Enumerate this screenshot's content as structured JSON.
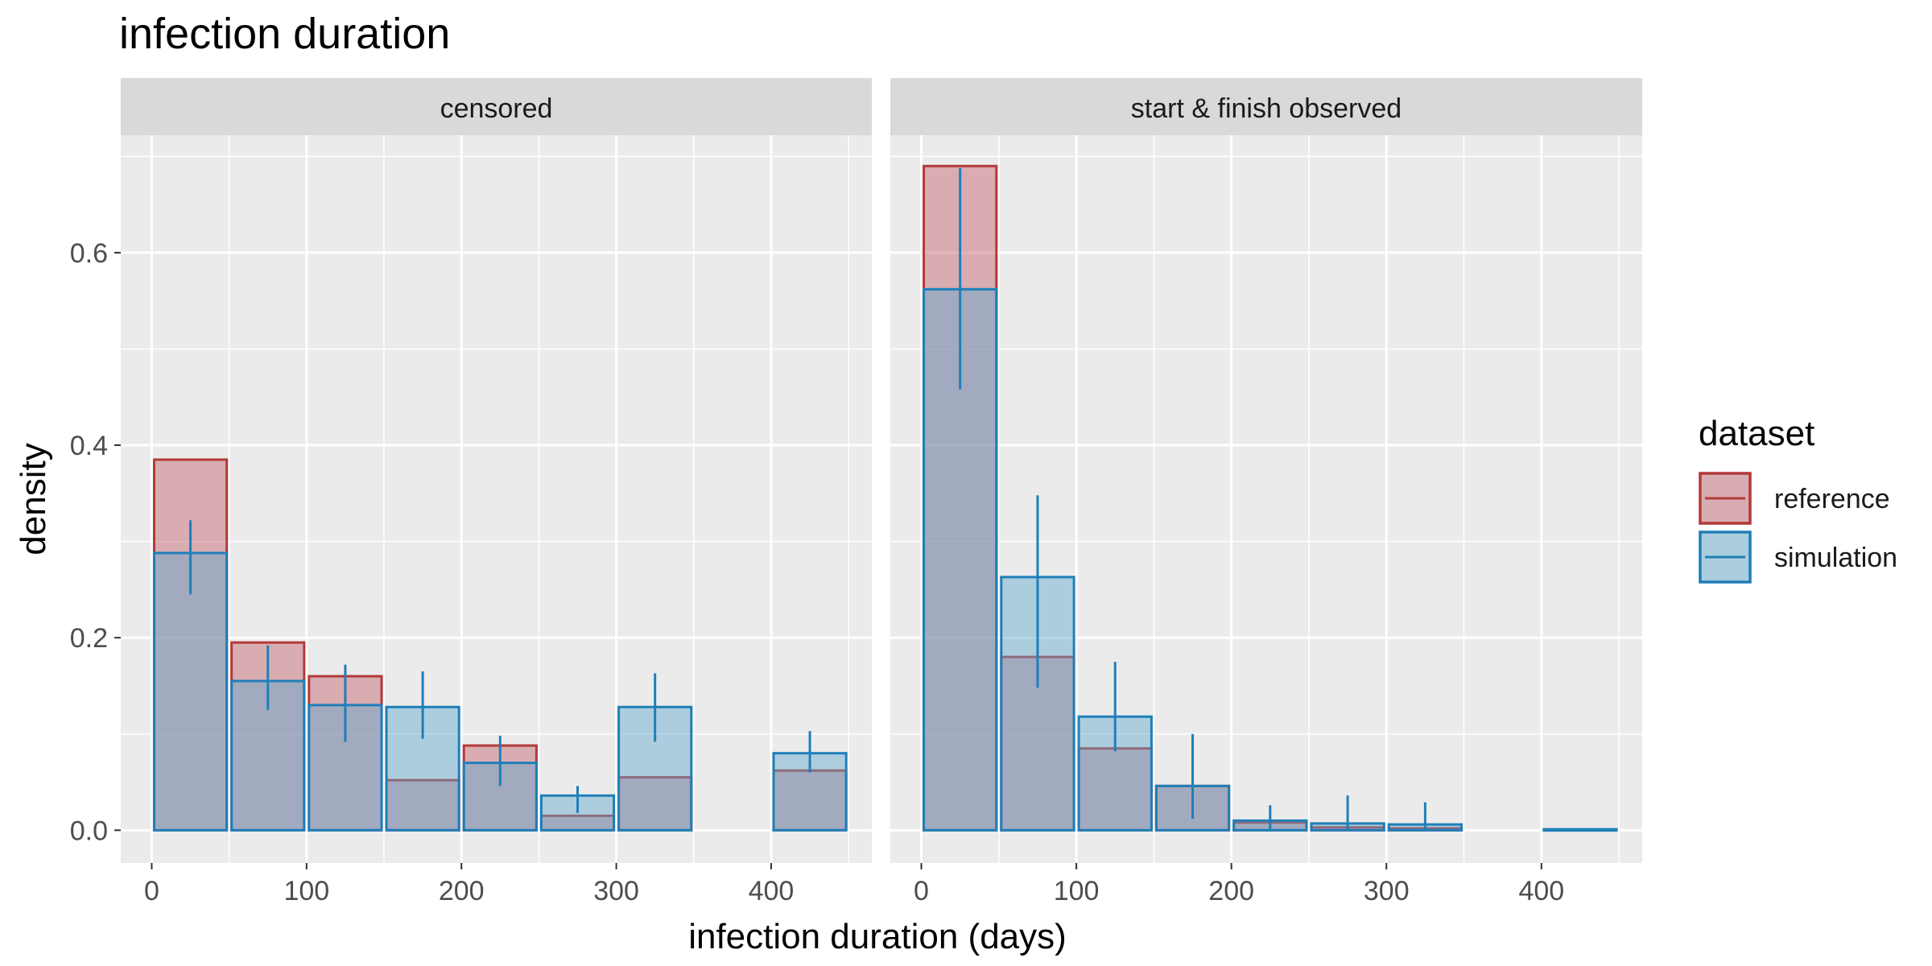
{
  "chart_data": {
    "type": "bar",
    "title": "infection duration",
    "xlabel": "infection duration (days)",
    "ylabel": "density",
    "xlim": [
      -20,
      465
    ],
    "ylim": [
      -0.034,
      0.722
    ],
    "xticks": [
      0,
      100,
      200,
      300,
      400
    ],
    "xtick_labels": [
      "0",
      "100",
      "200",
      "300",
      "400"
    ],
    "yticks": [
      0.0,
      0.2,
      0.4,
      0.6
    ],
    "ytick_labels": [
      "0.0",
      "0.2",
      "0.4",
      "0.6"
    ],
    "grid": true,
    "bin_width": 50,
    "legend": {
      "title": "dataset",
      "position": "right",
      "entries": [
        "reference",
        "simulation"
      ]
    },
    "colors": {
      "reference_fill": "#c0606a",
      "reference_line": "#b33a3a",
      "simulation_fill": "#5fa8cf",
      "simulation_line": "#1f7fb8",
      "panel_bg": "#ebebeb",
      "strip_bg": "#d9d9d9"
    },
    "panels": [
      {
        "strip": "censored",
        "bin_centers": [
          25,
          75,
          125,
          175,
          225,
          275,
          325,
          375,
          425
        ],
        "series": [
          {
            "name": "reference",
            "values": [
              0.385,
              0.195,
              0.16,
              0.052,
              0.088,
              0.015,
              0.055,
              0.0,
              0.062
            ]
          },
          {
            "name": "simulation",
            "values": [
              0.288,
              0.155,
              0.13,
              0.128,
              0.07,
              0.036,
              0.128,
              0.0,
              0.08
            ],
            "error_low": [
              0.245,
              0.125,
              0.092,
              0.095,
              0.046,
              0.018,
              0.092,
              null,
              0.06
            ],
            "error_high": [
              0.322,
              0.192,
              0.172,
              0.165,
              0.098,
              0.046,
              0.163,
              null,
              0.103
            ]
          }
        ]
      },
      {
        "strip": "start & finish observed",
        "bin_centers": [
          25,
          75,
          125,
          175,
          225,
          275,
          325,
          375,
          425
        ],
        "series": [
          {
            "name": "reference",
            "values": [
              0.69,
              0.18,
              0.085,
              0.046,
              0.008,
              0.003,
              0.002,
              0.0,
              0.0
            ]
          },
          {
            "name": "simulation",
            "values": [
              0.562,
              0.263,
              0.118,
              0.046,
              0.01,
              0.007,
              0.006,
              0.0,
              0.001
            ],
            "error_low": [
              0.458,
              0.148,
              0.082,
              0.012,
              0.0,
              0.0,
              0.0,
              null,
              null
            ],
            "error_high": [
              0.688,
              0.348,
              0.175,
              0.1,
              0.026,
              0.036,
              0.029,
              null,
              null
            ]
          }
        ]
      }
    ]
  }
}
